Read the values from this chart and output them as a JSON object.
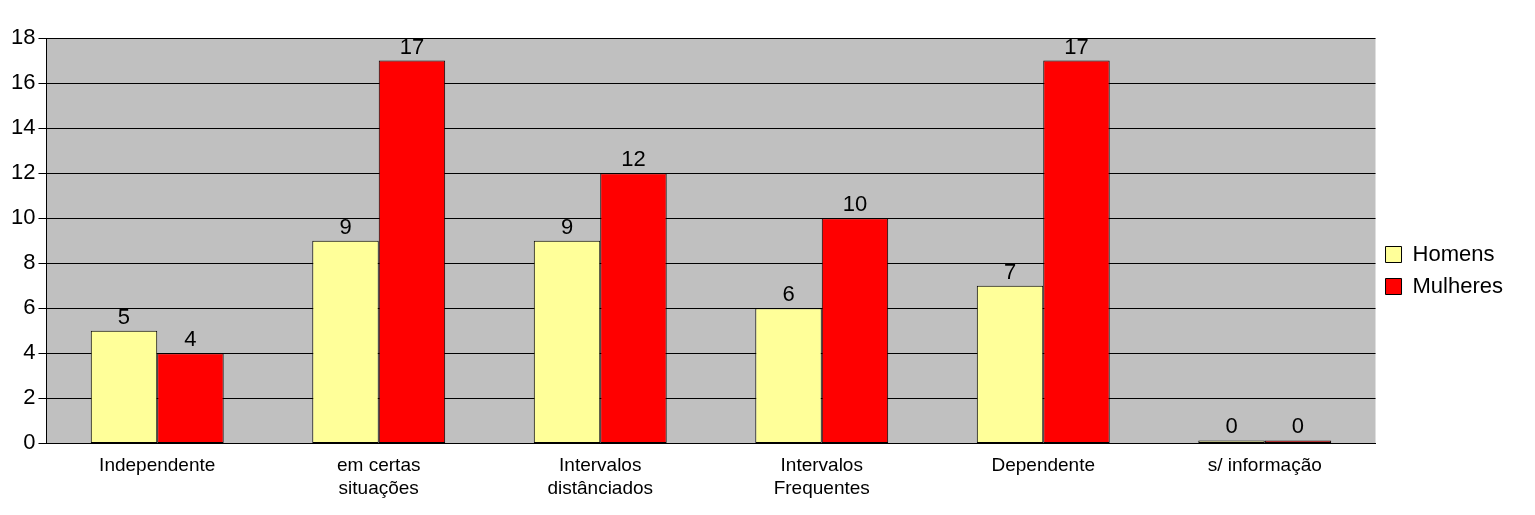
{
  "chart_data": {
    "type": "bar",
    "categories": [
      "Independente",
      "em certas situações",
      "Intervalos distânciados",
      "Intervalos Frequentes",
      "Dependente",
      "s/ informação"
    ],
    "series": [
      {
        "name": "Homens",
        "color": "#ffff99",
        "values": [
          5,
          9,
          9,
          6,
          7,
          0
        ]
      },
      {
        "name": "Mulheres",
        "color": "#ff0000",
        "values": [
          4,
          17,
          12,
          10,
          17,
          0
        ]
      }
    ],
    "ylim": [
      0,
      18
    ],
    "yticks": [
      0,
      2,
      4,
      6,
      8,
      10,
      12,
      14,
      16,
      18
    ],
    "grid": "y",
    "legend": "right",
    "data_labels": true
  }
}
